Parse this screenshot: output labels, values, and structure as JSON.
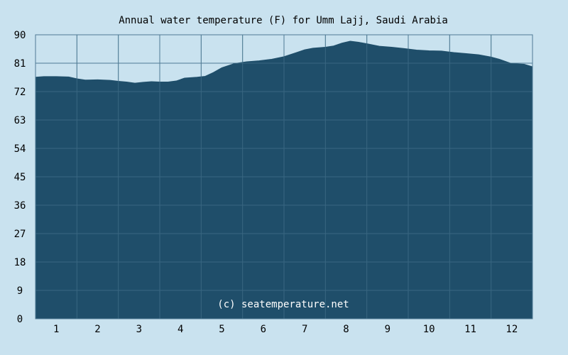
{
  "chart_data": {
    "type": "area",
    "title": "Annual water temperature (F) for Umm Lajj, Saudi Arabia",
    "xlabel": "",
    "ylabel": "",
    "x_ticks": [
      "1",
      "2",
      "3",
      "4",
      "5",
      "6",
      "7",
      "8",
      "9",
      "10",
      "11",
      "12"
    ],
    "y_ticks": [
      "0",
      "9",
      "18",
      "27",
      "36",
      "45",
      "54",
      "63",
      "72",
      "81",
      "90"
    ],
    "ylim": [
      0,
      90
    ],
    "xlim": [
      0.5,
      12.5
    ],
    "grid": true,
    "legend": "none",
    "watermark": "(c) seatemperature.net",
    "colors": {
      "background": "#c9e2ef",
      "plot_background": "#c9e2ef",
      "area_fill": "#1f4e6a",
      "grid": "#4f7b94"
    },
    "series": [
      {
        "x": [
          0.5,
          0.7,
          1.0,
          1.3,
          1.5,
          1.7,
          2.0,
          2.3,
          2.5,
          2.7,
          2.9,
          3.1,
          3.3,
          3.5,
          3.7,
          3.9,
          4.1,
          4.4,
          4.6,
          4.8,
          5.0,
          5.3,
          5.6,
          5.9,
          6.2,
          6.5,
          6.8,
          7.0,
          7.2,
          7.5,
          7.7,
          7.9,
          8.1,
          8.3,
          8.5,
          8.8,
          9.1,
          9.4,
          9.7,
          10.0,
          10.3,
          10.6,
          10.9,
          11.2,
          11.5,
          11.7,
          12.0,
          12.3,
          12.5
        ],
        "values": [
          76.5,
          76.7,
          76.7,
          76.6,
          76.0,
          75.6,
          75.7,
          75.5,
          75.2,
          75.0,
          74.6,
          74.9,
          75.1,
          75.0,
          75.0,
          75.3,
          76.2,
          76.5,
          76.8,
          78.0,
          79.5,
          80.8,
          81.4,
          81.7,
          82.2,
          83.0,
          84.3,
          85.2,
          85.7,
          86.0,
          86.4,
          87.3,
          87.9,
          87.6,
          87.1,
          86.3,
          86.0,
          85.6,
          85.1,
          84.9,
          84.8,
          84.3,
          84.0,
          83.6,
          82.9,
          82.2,
          80.8,
          80.6,
          79.8
        ]
      }
    ]
  }
}
